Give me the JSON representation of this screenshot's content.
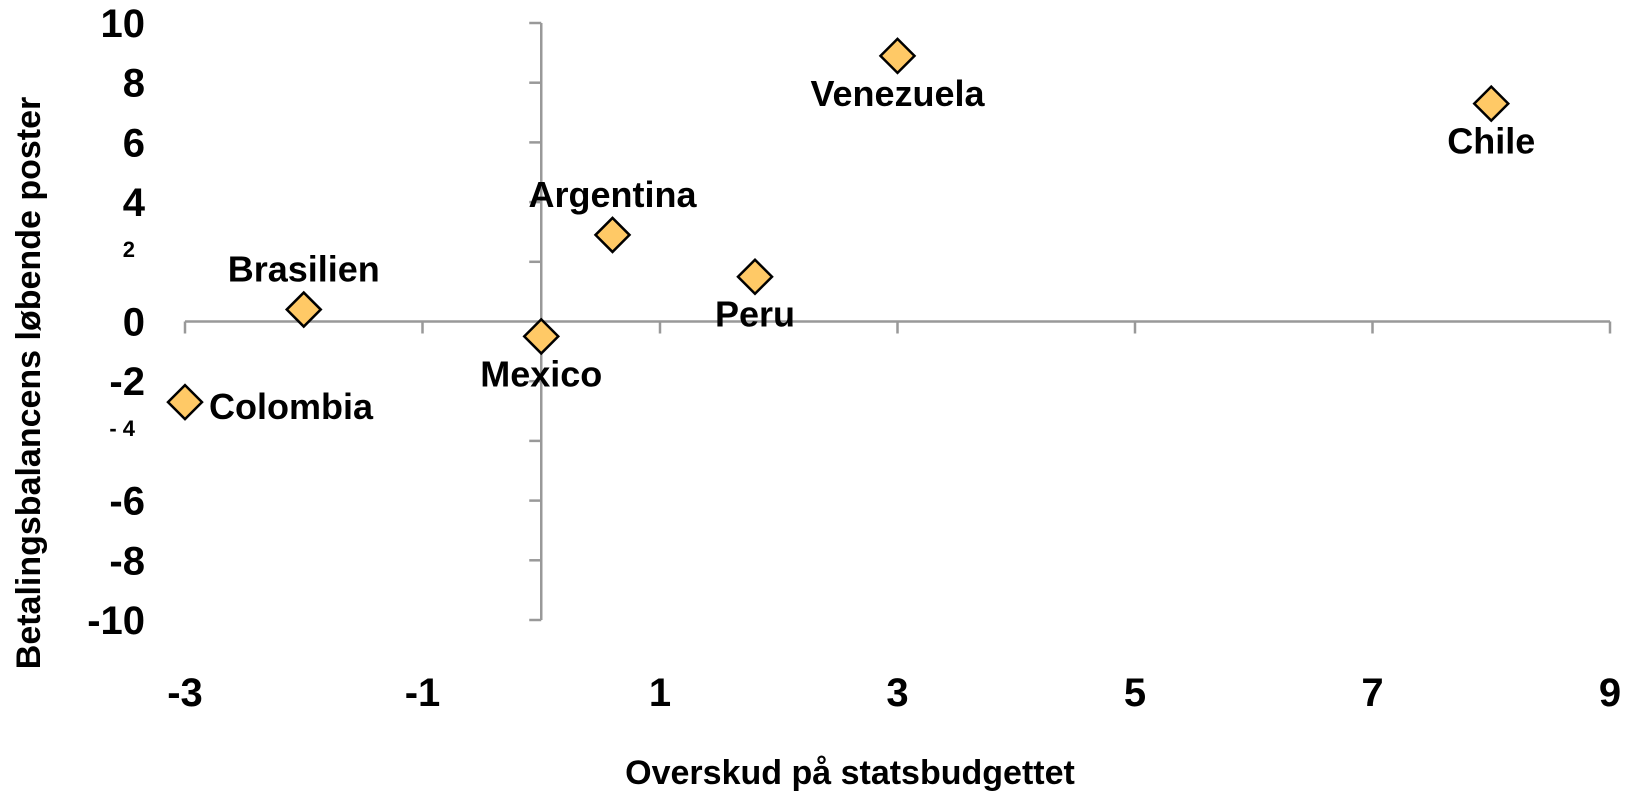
{
  "chart_data": {
    "type": "scatter",
    "xlabel": "Overskud på statsbudgettet",
    "ylabel": "Betalingsbalancens løbende poster",
    "xlim": [
      -3,
      9
    ],
    "ylim": [
      -10,
      10
    ],
    "x_ticks": [
      "-3",
      "-1",
      "1",
      "3",
      "5",
      "7",
      "9"
    ],
    "y_ticks": [
      {
        "value": 10,
        "label": "10",
        "small": false
      },
      {
        "value": 8,
        "label": "8",
        "small": false
      },
      {
        "value": 6,
        "label": "6",
        "small": false
      },
      {
        "value": 4,
        "label": "4",
        "small": false
      },
      {
        "value": 2,
        "label": "2",
        "small": true
      },
      {
        "value": 0,
        "label": "0",
        "small": false
      },
      {
        "value": -2,
        "label": "-2",
        "small": false
      },
      {
        "value": -4,
        "label": "- 4",
        "small": true
      },
      {
        "value": -6,
        "label": "-6",
        "small": false
      },
      {
        "value": -8,
        "label": "-8",
        "small": false
      },
      {
        "value": -10,
        "label": "-10",
        "small": false
      }
    ],
    "marker_color": "#FFC966",
    "axis_color": "#999999",
    "grid": false,
    "points": [
      {
        "name": "Venezuela",
        "x": 3.0,
        "y": 8.9,
        "label_pos": "below"
      },
      {
        "name": "Chile",
        "x": 8.0,
        "y": 7.3,
        "label_pos": "below"
      },
      {
        "name": "Argentina",
        "x": 0.6,
        "y": 2.9,
        "label_pos": "above"
      },
      {
        "name": "Peru",
        "x": 1.8,
        "y": 1.5,
        "label_pos": "below"
      },
      {
        "name": "Brasilien",
        "x": -2.0,
        "y": 0.4,
        "label_pos": "above"
      },
      {
        "name": "Mexico",
        "x": 0.0,
        "y": -0.5,
        "label_pos": "below"
      },
      {
        "name": "Colombia",
        "x": -3.0,
        "y": -2.7,
        "label_pos": "right"
      }
    ]
  }
}
